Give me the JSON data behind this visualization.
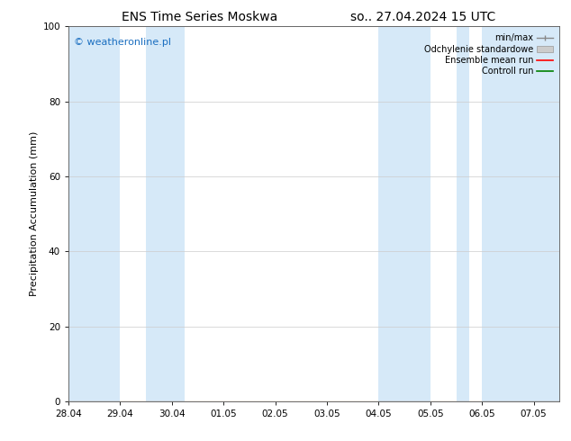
{
  "title_left": "ENS Time Series Moskwa",
  "title_right": "so.. 27.04.2024 15 UTC",
  "ylabel": "Precipitation Accumulation (mm)",
  "watermark": "© weatheronline.pl",
  "ylim": [
    0,
    100
  ],
  "yticks": [
    0,
    20,
    40,
    60,
    80,
    100
  ],
  "shade_band_color": "#d6e9f8",
  "shade_alpha": 1.0,
  "shade_intervals": [
    [
      "2024-04-28 00:00",
      "2024-04-28 12:00"
    ],
    [
      "2024-04-29 12:00",
      "2024-04-30 00:00"
    ],
    [
      "2024-05-04 00:00",
      "2024-05-05 00:00"
    ],
    [
      "2024-05-06 00:00",
      "2024-05-07 12:00"
    ]
  ],
  "x_tick_labels": [
    "28.04",
    "29.04",
    "30.04",
    "01.05",
    "02.05",
    "03.05",
    "04.05",
    "05.05",
    "06.05",
    "07.05"
  ],
  "x_tick_dates": [
    "2024-04-28",
    "2024-04-29",
    "2024-04-30",
    "2024-05-01",
    "2024-05-02",
    "2024-05-03",
    "2024-05-04",
    "2024-05-05",
    "2024-05-06",
    "2024-05-07"
  ],
  "title_fontsize": 10,
  "tick_fontsize": 7.5,
  "ylabel_fontsize": 8,
  "watermark_color": "#1a6ec0",
  "watermark_fontsize": 8,
  "background_color": "#ffffff"
}
